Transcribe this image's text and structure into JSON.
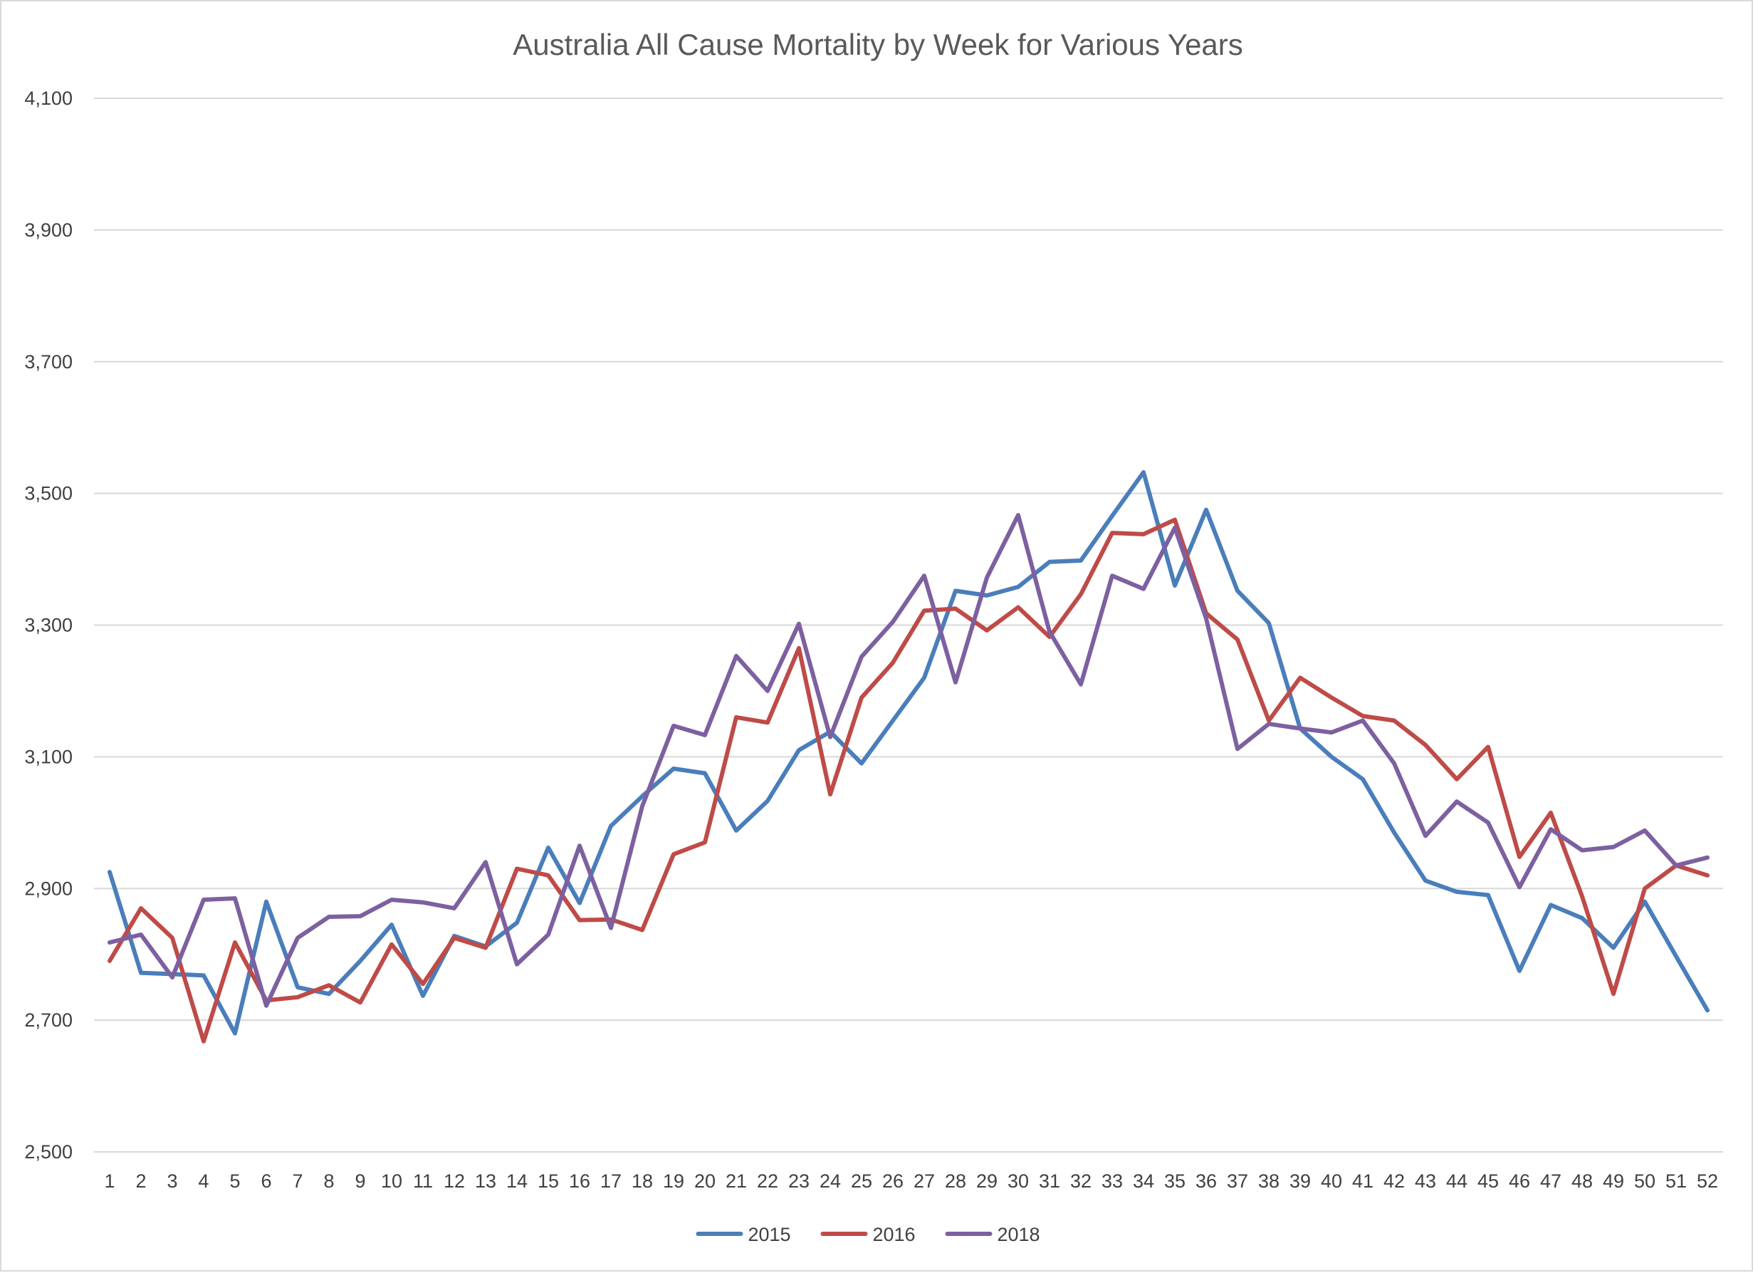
{
  "chart_data": {
    "type": "line",
    "title": "Australia All Cause Mortality by Week for Various Years",
    "xlabel": "",
    "ylabel": "",
    "ylim": [
      2500,
      4100
    ],
    "yticks": [
      2500,
      2700,
      2900,
      3100,
      3300,
      3500,
      3700,
      3900,
      4100
    ],
    "ytick_labels": [
      "2,500",
      "2,700",
      "2,900",
      "3,100",
      "3,300",
      "3,500",
      "3,700",
      "3,900",
      "4,100"
    ],
    "grid": true,
    "legend_position": "bottom",
    "categories": [
      "1",
      "2",
      "3",
      "4",
      "5",
      "6",
      "7",
      "8",
      "9",
      "10",
      "11",
      "12",
      "13",
      "14",
      "15",
      "16",
      "17",
      "18",
      "19",
      "20",
      "21",
      "22",
      "23",
      "24",
      "25",
      "26",
      "27",
      "28",
      "29",
      "30",
      "31",
      "32",
      "33",
      "34",
      "35",
      "36",
      "37",
      "38",
      "39",
      "40",
      "41",
      "42",
      "43",
      "44",
      "45",
      "46",
      "47",
      "48",
      "49",
      "50",
      "51",
      "52"
    ],
    "series": [
      {
        "name": "2015",
        "color": "#4a7ebb",
        "values": [
          2925,
          2772,
          2770,
          2768,
          2680,
          2880,
          2750,
          2740,
          2790,
          2845,
          2737,
          2828,
          2812,
          2848,
          2962,
          2878,
          2995,
          3040,
          3082,
          3075,
          2988,
          3033,
          3110,
          3138,
          3090,
          3155,
          3220,
          3352,
          3345,
          3358,
          3396,
          3398,
          3466,
          3532,
          3360,
          3475,
          3352,
          3303,
          3143,
          3100,
          3066,
          2985,
          2912,
          2895,
          2890,
          2775,
          2875,
          2855,
          2810,
          2880,
          2797,
          2715
        ]
      },
      {
        "name": "2016",
        "color": "#be4b48",
        "values": [
          2790,
          2870,
          2825,
          2668,
          2818,
          2730,
          2735,
          2753,
          2727,
          2815,
          2755,
          2825,
          2810,
          2930,
          2920,
          2852,
          2853,
          2837,
          2952,
          2970,
          3160,
          3152,
          3265,
          3043,
          3190,
          3243,
          3322,
          3325,
          3292,
          3327,
          3282,
          3347,
          3440,
          3438,
          3460,
          3318,
          3278,
          3155,
          3220,
          3190,
          3162,
          3155,
          3118,
          3066,
          3115,
          2948,
          3015,
          2888,
          2740,
          2900,
          2935,
          2920
        ]
      },
      {
        "name": "2018",
        "color": "#7d60a0",
        "values": [
          2818,
          2830,
          2765,
          2883,
          2885,
          2722,
          2825,
          2857,
          2858,
          2883,
          2879,
          2870,
          2940,
          2785,
          2830,
          2965,
          2840,
          3025,
          3147,
          3133,
          3253,
          3200,
          3302,
          3130,
          3252,
          3305,
          3375,
          3213,
          3372,
          3467,
          3290,
          3210,
          3375,
          3355,
          3448,
          3310,
          3112,
          3150,
          3143,
          3137,
          3155,
          3090,
          2980,
          3032,
          3000,
          2902,
          2990,
          2958,
          2963,
          2988,
          2935,
          2947
        ]
      }
    ]
  }
}
